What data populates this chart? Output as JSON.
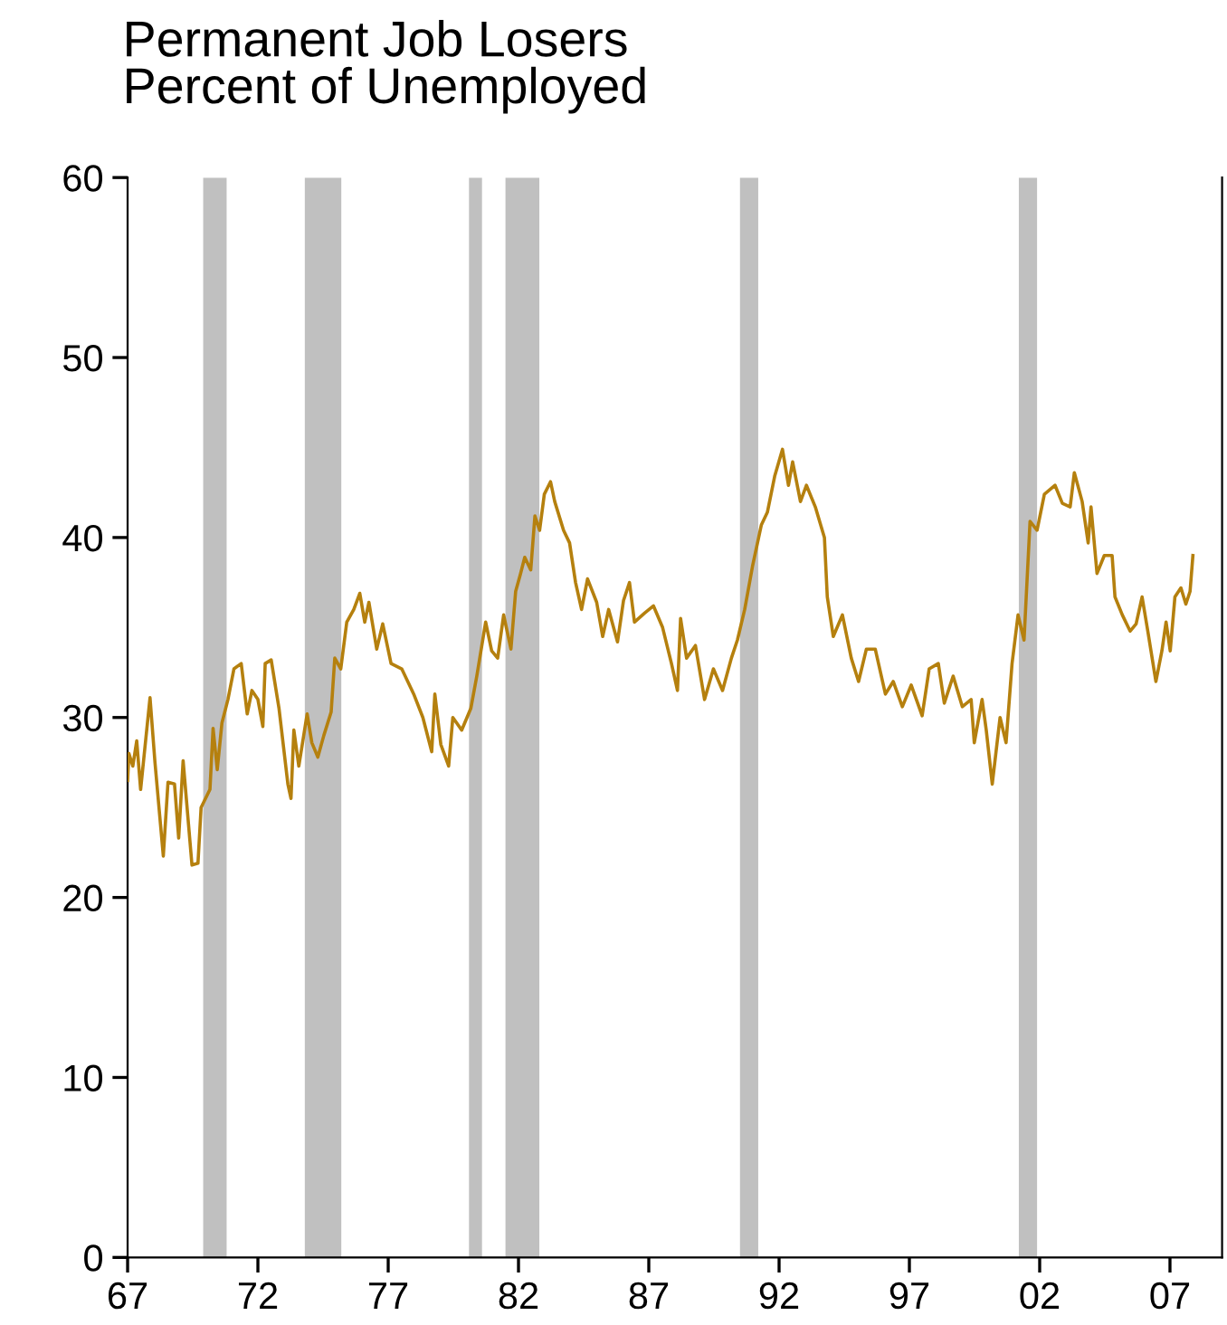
{
  "chart_data": {
    "type": "line",
    "title": "Permanent Job Losers\nPercent of Unemployed",
    "x": [
      1967.0,
      1967.05,
      1967.2,
      1967.35,
      1967.5,
      1967.86,
      1968.05,
      1968.37,
      1968.55,
      1968.8,
      1968.96,
      1969.13,
      1969.47,
      1969.7,
      1969.82,
      1970.16,
      1970.28,
      1970.44,
      1970.62,
      1970.85,
      1971.08,
      1971.36,
      1971.59,
      1971.77,
      1972.0,
      1972.19,
      1972.28,
      1972.51,
      1972.81,
      1973.15,
      1973.27,
      1973.38,
      1973.57,
      1973.89,
      1974.07,
      1974.3,
      1974.53,
      1974.81,
      1974.95,
      1975.18,
      1975.41,
      1975.68,
      1975.91,
      1976.1,
      1976.26,
      1976.56,
      1976.79,
      1977.11,
      1977.52,
      1977.75,
      1977.98,
      1978.33,
      1978.67,
      1978.79,
      1979.02,
      1979.32,
      1979.48,
      1979.82,
      1980.17,
      1980.4,
      1980.74,
      1980.97,
      1981.2,
      1981.43,
      1981.71,
      1981.89,
      1982.08,
      1982.24,
      1982.47,
      1982.63,
      1982.81,
      1982.99,
      1983.23,
      1983.39,
      1983.73,
      1983.96,
      1984.19,
      1984.42,
      1984.65,
      1985.0,
      1985.23,
      1985.46,
      1985.8,
      1986.03,
      1986.26,
      1986.45,
      1986.84,
      1987.18,
      1987.53,
      1987.87,
      1988.1,
      1988.22,
      1988.45,
      1988.79,
      1989.14,
      1989.48,
      1989.83,
      1990.17,
      1990.4,
      1990.68,
      1990.98,
      1991.32,
      1991.55,
      1991.83,
      1992.13,
      1992.36,
      1992.52,
      1992.82,
      1993.05,
      1993.39,
      1993.74,
      1993.85,
      1994.08,
      1994.43,
      1994.77,
      1995.05,
      1995.35,
      1995.69,
      1996.08,
      1996.38,
      1996.73,
      1997.07,
      1997.49,
      1997.76,
      1998.11,
      1998.34,
      1998.68,
      1999.03,
      1999.37,
      1999.49,
      1999.79,
      1999.95,
      2000.18,
      2000.48,
      2000.71,
      2000.94,
      2001.17,
      2001.4,
      2001.63,
      2001.9,
      2002.18,
      2002.59,
      2002.87,
      2003.17,
      2003.33,
      2003.63,
      2003.86,
      2003.97,
      2004.2,
      2004.48,
      2004.78,
      2004.89,
      2005.17,
      2005.47,
      2005.7,
      2005.93,
      2006.16,
      2006.46,
      2006.69,
      2006.85,
      2007.01,
      2007.19,
      2007.42,
      2007.61,
      2007.77,
      2007.88
    ],
    "series": [
      {
        "color": "#b5800e",
        "values": [
          26.5,
          28.0,
          27.3,
          28.7,
          26.0,
          31.1,
          27.5,
          22.3,
          26.4,
          26.3,
          23.3,
          27.6,
          21.8,
          21.9,
          25.0,
          26.0,
          29.4,
          27.1,
          29.7,
          31.0,
          32.7,
          33.0,
          30.2,
          31.5,
          31.0,
          29.5,
          33.0,
          33.2,
          30.5,
          26.3,
          25.5,
          29.3,
          27.3,
          30.2,
          28.6,
          27.8,
          29.0,
          30.3,
          33.3,
          32.7,
          35.3,
          36.0,
          36.9,
          35.3,
          36.4,
          33.8,
          35.2,
          33.0,
          32.7,
          32.0,
          31.3,
          30.0,
          28.1,
          31.3,
          28.5,
          27.3,
          30.0,
          29.3,
          30.5,
          32.3,
          35.3,
          33.7,
          33.3,
          35.7,
          33.8,
          37.0,
          38.0,
          38.9,
          38.2,
          41.2,
          40.4,
          42.4,
          43.1,
          42.0,
          40.4,
          39.7,
          37.5,
          36.0,
          37.7,
          36.4,
          34.5,
          36.0,
          34.2,
          36.5,
          37.5,
          35.3,
          35.8,
          36.2,
          35.0,
          33.0,
          31.5,
          35.5,
          33.3,
          34.0,
          31.0,
          32.7,
          31.5,
          33.3,
          34.3,
          36.0,
          38.4,
          40.7,
          41.4,
          43.4,
          44.9,
          42.9,
          44.2,
          42.0,
          42.9,
          41.7,
          40.0,
          36.7,
          34.5,
          35.7,
          33.3,
          32.0,
          33.8,
          33.8,
          31.3,
          32.0,
          30.6,
          31.8,
          30.1,
          32.7,
          33.0,
          30.8,
          32.3,
          30.6,
          31.0,
          28.6,
          31.0,
          29.3,
          26.3,
          30.0,
          28.6,
          33.0,
          35.7,
          34.3,
          40.9,
          40.4,
          42.4,
          42.9,
          41.9,
          41.7,
          43.6,
          42.0,
          39.7,
          41.7,
          38.0,
          39.0,
          39.0,
          36.7,
          35.7,
          34.8,
          35.2,
          36.7,
          34.7,
          32.0,
          33.7,
          35.3,
          33.7,
          36.7,
          37.2,
          36.3,
          37.0,
          39.0
        ]
      }
    ],
    "xlim": [
      1967,
      2009
    ],
    "xticks": [
      {
        "value": 1967,
        "label": "67"
      },
      {
        "value": 1972,
        "label": "72"
      },
      {
        "value": 1977,
        "label": "77"
      },
      {
        "value": 1982,
        "label": "82"
      },
      {
        "value": 1987,
        "label": "87"
      },
      {
        "value": 1992,
        "label": "92"
      },
      {
        "value": 1997,
        "label": "97"
      },
      {
        "value": 2002,
        "label": "02"
      },
      {
        "value": 2007,
        "label": "07"
      }
    ],
    "ylim": [
      0,
      60
    ],
    "yticks": [
      0,
      10,
      20,
      30,
      40,
      50,
      60
    ],
    "bands": [
      {
        "axis": "x",
        "from": 1969.9,
        "to": 1970.8,
        "color": "#c0c0c0"
      },
      {
        "axis": "x",
        "from": 1973.8,
        "to": 1975.2,
        "color": "#c0c0c0"
      },
      {
        "axis": "x",
        "from": 1980.1,
        "to": 1980.6,
        "color": "#c0c0c0"
      },
      {
        "axis": "x",
        "from": 1981.5,
        "to": 1982.8,
        "color": "#c0c0c0"
      },
      {
        "axis": "x",
        "from": 1990.5,
        "to": 1991.2,
        "color": "#c0c0c0"
      },
      {
        "axis": "x",
        "from": 2001.2,
        "to": 2001.9,
        "color": "#c0c0c0"
      }
    ],
    "grid": false,
    "legend": false,
    "marker": "none",
    "line_style": "solid"
  }
}
